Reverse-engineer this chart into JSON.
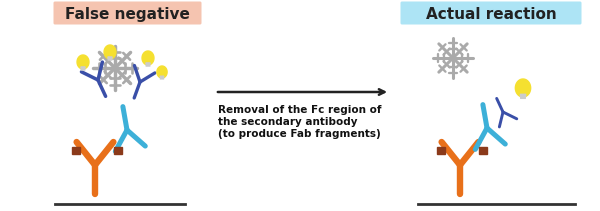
{
  "title_left": "False negative",
  "title_right": "Actual reaction",
  "title_left_bg": "#f5c4b0",
  "title_right_bg": "#ade4f5",
  "title_fontsize": 11,
  "arrow_text_line1": "Removal of the Fc region of",
  "arrow_text_line2": "the secondary antibody",
  "arrow_text_line3": "(to produce Fab fragments)",
  "arrow_text_fontsize": 7.5,
  "bg_color": "#ffffff",
  "antibody_orange": "#e8701a",
  "antibody_blue_light": "#3db0d8",
  "antibody_blue_dark": "#3a4fa8",
  "antibody_gray": "#aaaaaa",
  "antibody_brown": "#8b3a1a",
  "snowflake_color": "#aaaaaa",
  "bulb_color": "#f5e030",
  "arrow_color": "#222222",
  "line_color": "#333333",
  "fig_width": 6.0,
  "fig_height": 2.11
}
